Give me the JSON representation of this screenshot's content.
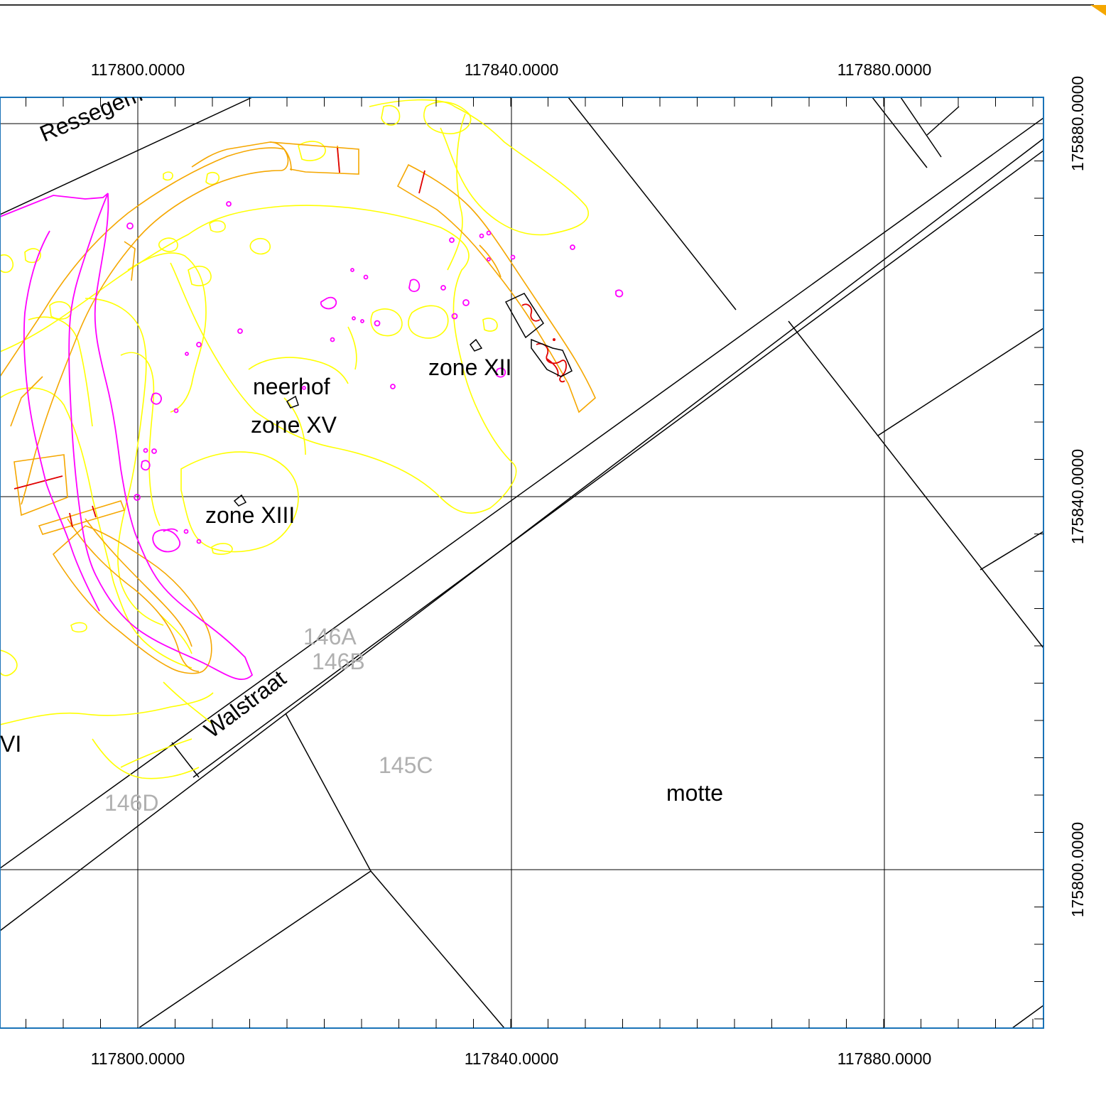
{
  "map": {
    "x_grid_labels": [
      "117800.0000",
      "117840.0000",
      "117880.0000"
    ],
    "y_grid_labels": [
      "175880.0000",
      "175840.0000",
      "175800.0000"
    ],
    "streets": [
      {
        "label": "Ressegem"
      },
      {
        "label": "Walstraat"
      }
    ],
    "zones": [
      {
        "label": "neerhof"
      },
      {
        "label": "zone XV"
      },
      {
        "label": "zone XII"
      },
      {
        "label": "zone XIII"
      },
      {
        "label": "VI"
      },
      {
        "label": "motte"
      }
    ],
    "parcels": [
      {
        "label": "146A"
      },
      {
        "label": "146B"
      },
      {
        "label": "145C"
      },
      {
        "label": "146D"
      }
    ],
    "colors": {
      "frame": "#1a73b8",
      "yellow_features": "#ffff00",
      "orange_features": "#f5a700",
      "magenta_features": "#ff00ff",
      "red_features": "#e00000",
      "parcel_lines": "#000000",
      "parcel_labels": "#b0b0b0"
    }
  }
}
